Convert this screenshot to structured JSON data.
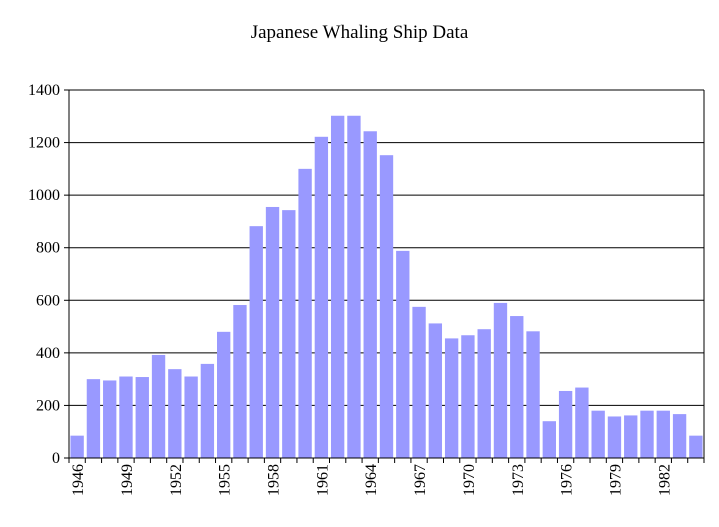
{
  "chart_data": {
    "type": "bar",
    "title": "Japanese Whaling Ship Data",
    "xlabel": "",
    "ylabel": "",
    "ylim": [
      0,
      1400
    ],
    "yticks": [
      0,
      200,
      400,
      600,
      800,
      1000,
      1200,
      1400
    ],
    "grid": true,
    "bar_color": "#9999ff",
    "categories": [
      "1946",
      "1947",
      "1948",
      "1949",
      "1950",
      "1951",
      "1952",
      "1953",
      "1954",
      "1955",
      "1956",
      "1957",
      "1958",
      "1959",
      "1960",
      "1961",
      "1962",
      "1963",
      "1964",
      "1965",
      "1966",
      "1967",
      "1968",
      "1969",
      "1970",
      "1971",
      "1972",
      "1973",
      "1974",
      "1975",
      "1976",
      "1977",
      "1978",
      "1979",
      "1980",
      "1981",
      "1982",
      "1983",
      "1984"
    ],
    "xtick_labels": [
      "1946",
      "1949",
      "1952",
      "1955",
      "1958",
      "1961",
      "1964",
      "1967",
      "1970",
      "1973",
      "1976",
      "1979",
      "1982"
    ],
    "values": [
      85,
      300,
      295,
      310,
      308,
      392,
      338,
      310,
      358,
      480,
      582,
      882,
      955,
      943,
      1100,
      1222,
      1302,
      1302,
      1243,
      1152,
      788,
      575,
      512,
      455,
      467,
      490,
      590,
      540,
      482,
      140,
      255,
      268,
      180,
      158,
      162,
      180,
      180,
      167,
      85
    ]
  }
}
